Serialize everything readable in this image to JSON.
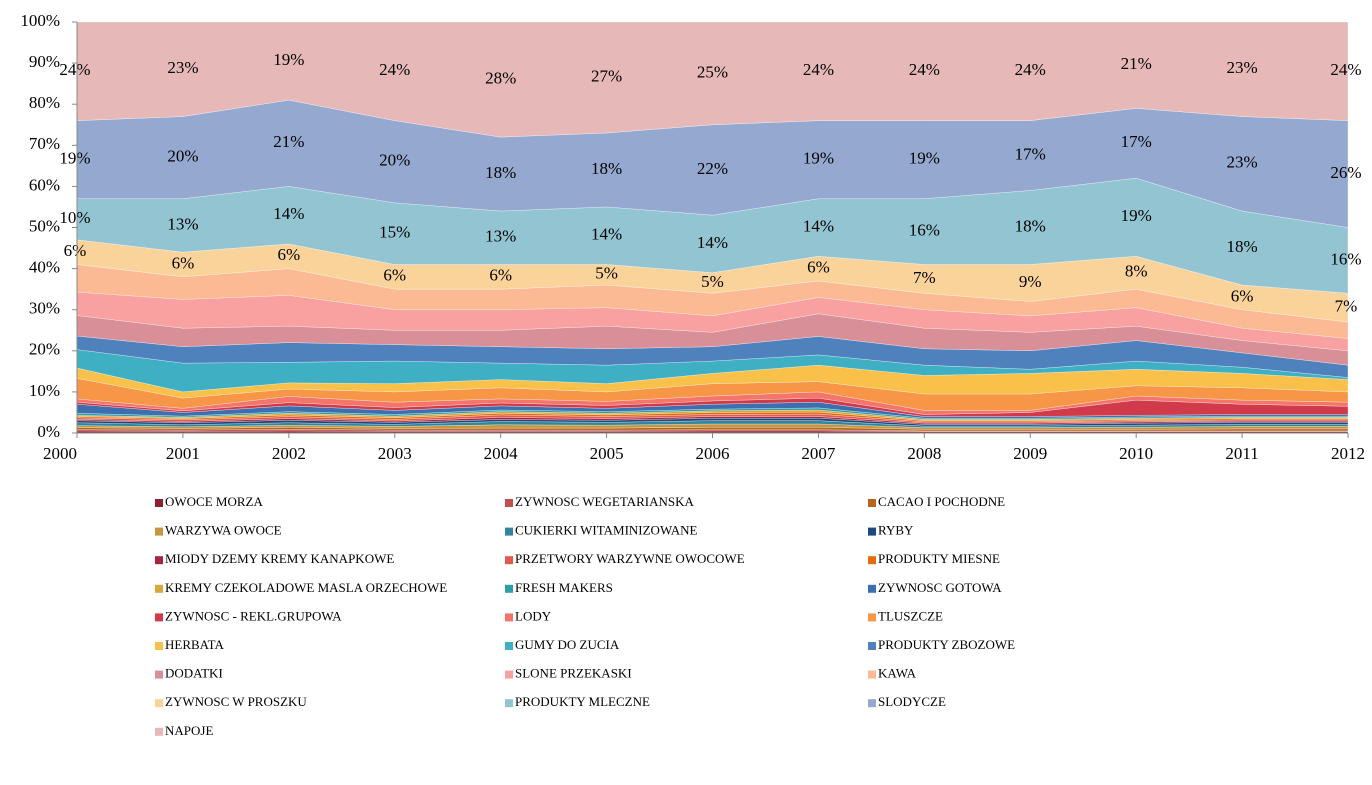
{
  "chart_data": {
    "type": "stacked_area_100",
    "categories": [
      "2000",
      "2001",
      "2002",
      "2003",
      "2004",
      "2005",
      "2006",
      "2007",
      "2008",
      "2009",
      "2010",
      "2011",
      "2012"
    ],
    "ylim": [
      0,
      100
    ],
    "yticks": [
      {
        "value": 0,
        "label": "0%"
      },
      {
        "value": 10,
        "label": "10%"
      },
      {
        "value": 20,
        "label": "20%"
      },
      {
        "value": 30,
        "label": "30%"
      },
      {
        "value": 40,
        "label": "40%"
      },
      {
        "value": 50,
        "label": "50%"
      },
      {
        "value": 60,
        "label": "60%"
      },
      {
        "value": 70,
        "label": "70%"
      },
      {
        "value": 80,
        "label": "80%"
      },
      {
        "value": 90,
        "label": "90%"
      },
      {
        "value": 100,
        "label": "100%"
      }
    ],
    "legend": "bottom",
    "series": [
      {
        "name": "OWOCE MORZA",
        "color": "#8b2232",
        "values": [
          0.5,
          0.4,
          0.5,
          0.4,
          0.4,
          0.4,
          0.5,
          0.5,
          0.3,
          0.3,
          0.3,
          0.3,
          0.3
        ]
      },
      {
        "name": "ZYWNOSC WEGETARIANSKA",
        "color": "#c0504d",
        "values": [
          0.3,
          0.3,
          0.4,
          0.3,
          0.3,
          0.3,
          0.3,
          0.3,
          0.2,
          0.2,
          0.2,
          0.2,
          0.2
        ]
      },
      {
        "name": "CACAO I POCHODNE",
        "color": "#b5651d",
        "values": [
          0.5,
          0.4,
          0.5,
          0.4,
          0.5,
          0.5,
          0.6,
          0.6,
          0.4,
          0.4,
          0.4,
          0.5,
          0.5
        ]
      },
      {
        "name": "WARZYWA OWOCE",
        "color": "#c8963e",
        "values": [
          0.5,
          0.4,
          0.5,
          0.5,
          0.8,
          0.7,
          0.8,
          0.8,
          0.4,
          0.4,
          0.5,
          0.6,
          0.6
        ]
      },
      {
        "name": "CUKIERKI WITAMINIZOWANE",
        "color": "#31859c",
        "values": [
          0.7,
          0.5,
          0.6,
          0.5,
          0.8,
          0.7,
          0.8,
          0.8,
          0.4,
          0.4,
          0.5,
          0.5,
          0.5
        ]
      },
      {
        "name": "RYBY",
        "color": "#1f497d",
        "values": [
          0.5,
          0.5,
          0.6,
          0.5,
          0.5,
          0.5,
          0.6,
          0.6,
          0.4,
          0.4,
          0.5,
          0.5,
          0.5
        ]
      },
      {
        "name": "MIODY DZEMY KREMY KANAPKOWE",
        "color": "#a5243e",
        "values": [
          0.3,
          0.3,
          0.4,
          0.3,
          0.5,
          0.4,
          0.4,
          0.4,
          0.3,
          0.3,
          0.3,
          0.3,
          0.3
        ]
      },
      {
        "name": "PRZETWORY WARZYWNE OWOCOWE",
        "color": "#e05a4f",
        "values": [
          0.4,
          0.4,
          0.5,
          0.4,
          0.6,
          0.5,
          0.5,
          0.6,
          0.3,
          0.3,
          0.3,
          0.3,
          0.3
        ]
      },
      {
        "name": "PRODUKTY MIESNE",
        "color": "#e46c0a",
        "values": [
          0.3,
          0.3,
          0.4,
          0.4,
          0.4,
          0.4,
          0.5,
          0.5,
          0.3,
          0.3,
          0.3,
          0.3,
          0.3
        ]
      },
      {
        "name": "KREMY CZEKOLADOWE MASLA ORZECHOWE",
        "color": "#d9a83a",
        "values": [
          0.3,
          0.3,
          0.4,
          0.4,
          0.4,
          0.4,
          0.4,
          0.5,
          0.3,
          0.3,
          0.3,
          0.3,
          0.3
        ]
      },
      {
        "name": "FRESH MAKERS",
        "color": "#2f9ea8",
        "values": [
          0.5,
          0.3,
          0.4,
          0.4,
          0.4,
          0.4,
          0.4,
          0.5,
          0.3,
          0.3,
          0.3,
          0.3,
          0.3
        ]
      },
      {
        "name": "ZYWNOSC GOTOWA",
        "color": "#3d6fae",
        "values": [
          2.2,
          0.9,
          1.4,
          1.0,
          1.0,
          0.8,
          1.2,
          1.4,
          0.4,
          0.4,
          0.4,
          0.4,
          0.4
        ]
      },
      {
        "name": "ZYWNOSC - REKL.GRUPOWA",
        "color": "#d13a4a",
        "values": [
          0.5,
          0.4,
          0.8,
          0.7,
          0.7,
          0.7,
          0.8,
          1,
          0.5,
          1,
          3.7,
          2.5,
          2
        ]
      },
      {
        "name": "LODY",
        "color": "#f4766a",
        "values": [
          0.8,
          0.6,
          1.5,
          1.3,
          1,
          1,
          1.2,
          1.5,
          1,
          0.5,
          1,
          1,
          1
        ]
      },
      {
        "name": "TLUSZCZE",
        "color": "#f79646",
        "values": [
          5,
          2.5,
          1.8,
          2.5,
          2.7,
          2.3,
          3,
          2.5,
          4,
          4,
          2.5,
          3,
          2.5
        ]
      },
      {
        "name": "HERBATA",
        "color": "#f9c04a",
        "values": [
          2.5,
          1.5,
          1.5,
          2,
          2,
          2,
          2.5,
          4,
          4.5,
          5,
          4,
          3.5,
          3
        ]
      },
      {
        "name": "GUMY DO ZUCIA",
        "color": "#3fb0c4",
        "values": [
          4.5,
          7,
          5,
          5.5,
          4,
          4.5,
          3,
          2.5,
          2.5,
          1,
          2,
          1.5,
          0.5
        ]
      },
      {
        "name": "PRODUKTY ZBOZOWE",
        "color": "#4f81bd",
        "values": [
          3.3,
          4,
          4.8,
          4,
          4,
          4,
          3.5,
          4.5,
          4,
          4.5,
          5,
          3.5,
          3
        ]
      },
      {
        "name": "DODATKI",
        "color": "#d98f98",
        "values": [
          5,
          4.5,
          4,
          3.5,
          4,
          5.5,
          3.5,
          5.5,
          5,
          4.5,
          3.5,
          3,
          3.5
        ]
      },
      {
        "name": "SLONE PRZEKASKI",
        "color": "#f9a0a0",
        "values": [
          5.7,
          7,
          7.5,
          5,
          5,
          4.5,
          4,
          4,
          4.5,
          4,
          4.5,
          3,
          3
        ]
      },
      {
        "name": "KAWA",
        "color": "#fbb994",
        "values": [
          6.7,
          5.5,
          6.5,
          5,
          5,
          5.5,
          5.5,
          4,
          4,
          3.5,
          4.5,
          4.5,
          4
        ]
      },
      {
        "name": "ZYWNOSC W PROSZKU",
        "color": "#fad39a",
        "values": [
          6,
          6,
          6,
          6,
          6,
          5,
          5,
          6,
          7,
          9,
          8,
          6,
          7
        ],
        "value_labels": [
          "6%",
          "6%",
          "6%",
          "6%",
          "6%",
          "5%",
          "5%",
          "6%",
          "7%",
          "9%",
          "8%",
          "6%",
          "7%"
        ]
      },
      {
        "name": "PRODUKTY MLECZNE",
        "color": "#93c4d2",
        "values": [
          10,
          13,
          14,
          15,
          13,
          14,
          14,
          14,
          16,
          18,
          19,
          18,
          16
        ],
        "value_labels": [
          "10%",
          "13%",
          "14%",
          "15%",
          "13%",
          "14%",
          "14%",
          "14%",
          "16%",
          "18%",
          "19%",
          "18%",
          "16%"
        ]
      },
      {
        "name": "SLODYCZE",
        "color": "#95a9d0",
        "values": [
          19,
          20,
          21,
          20,
          18,
          18,
          22,
          19,
          19,
          17,
          17,
          23,
          26
        ],
        "value_labels": [
          "19%",
          "20%",
          "21%",
          "20%",
          "18%",
          "18%",
          "22%",
          "19%",
          "19%",
          "17%",
          "17%",
          "23%",
          "26%"
        ]
      },
      {
        "name": "NAPOJE",
        "color": "#e6b9b8",
        "values": [
          24,
          23,
          19,
          24,
          28,
          27,
          25,
          24,
          24,
          24,
          21,
          23,
          24
        ],
        "value_labels": [
          "24%",
          "23%",
          "19%",
          "24%",
          "28%",
          "27%",
          "25%",
          "24%",
          "24%",
          "24%",
          "21%",
          "23%",
          "24%"
        ]
      }
    ]
  }
}
